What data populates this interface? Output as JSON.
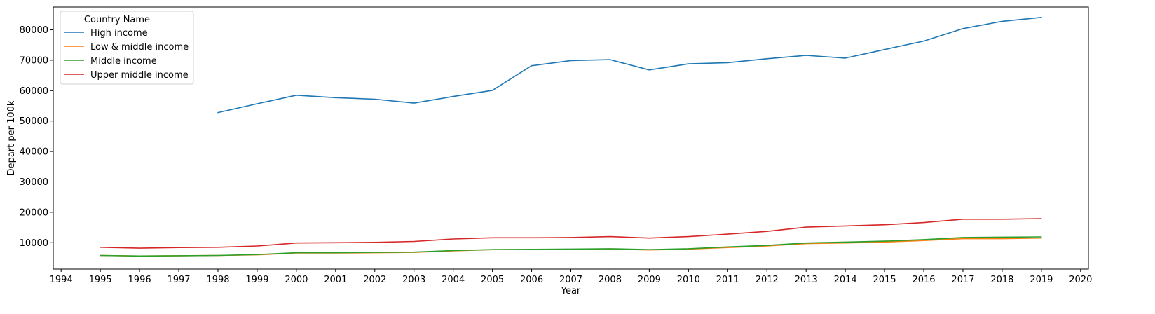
{
  "chart_data": {
    "type": "line",
    "xlabel": "Year",
    "ylabel": "Depart per 100k",
    "xlim": [
      1993.8,
      2020.2
    ],
    "ylim": [
      1300,
      87500
    ],
    "xticks": [
      1994,
      1995,
      1996,
      1997,
      1998,
      1999,
      2000,
      2001,
      2002,
      2003,
      2004,
      2005,
      2006,
      2007,
      2008,
      2009,
      2010,
      2011,
      2012,
      2013,
      2014,
      2015,
      2016,
      2017,
      2018,
      2019,
      2020
    ],
    "yticks": [
      10000,
      20000,
      30000,
      40000,
      50000,
      60000,
      70000,
      80000
    ],
    "grid": false,
    "legend": {
      "title": "Country Name",
      "placement": "top-left"
    },
    "series": [
      {
        "name": "High income",
        "color": "#1f77b4",
        "x": [
          1998,
          1999,
          2000,
          2001,
          2002,
          2003,
          2004,
          2005,
          2006,
          2007,
          2008,
          2009,
          2010,
          2011,
          2012,
          2013,
          2014,
          2015,
          2016,
          2017,
          2018,
          2019
        ],
        "y": [
          52800,
          55700,
          58500,
          57700,
          57200,
          55900,
          58100,
          60100,
          68200,
          69900,
          70200,
          66800,
          68800,
          69200,
          70500,
          71600,
          70700,
          73500,
          76300,
          80400,
          82800,
          84100
        ]
      },
      {
        "name": "Low & middle income",
        "color": "#ff7f0e",
        "x": [
          1995,
          1996,
          1997,
          1998,
          1999,
          2000,
          2001,
          2002,
          2003,
          2004,
          2005,
          2006,
          2007,
          2008,
          2009,
          2010,
          2011,
          2012,
          2013,
          2014,
          2015,
          2016,
          2017,
          2018,
          2019
        ],
        "y": [
          5800,
          5600,
          5700,
          5800,
          6000,
          6600,
          6600,
          6700,
          6800,
          7300,
          7700,
          7700,
          7800,
          7900,
          7600,
          7900,
          8400,
          8900,
          9700,
          9900,
          10200,
          10700,
          11300,
          11300,
          11500
        ]
      },
      {
        "name": "Middle income",
        "color": "#2ca02c",
        "x": [
          1995,
          1996,
          1997,
          1998,
          1999,
          2000,
          2001,
          2002,
          2003,
          2004,
          2005,
          2006,
          2007,
          2008,
          2009,
          2010,
          2011,
          2012,
          2013,
          2014,
          2015,
          2016,
          2017,
          2018,
          2019
        ],
        "y": [
          5800,
          5600,
          5700,
          5800,
          6100,
          6700,
          6700,
          6800,
          6900,
          7400,
          7700,
          7800,
          7900,
          8000,
          7700,
          8000,
          8600,
          9100,
          9900,
          10200,
          10500,
          11000,
          11700,
          11800,
          11900
        ]
      },
      {
        "name": "Upper middle income",
        "color": "#d62728",
        "x": [
          1995,
          1996,
          1997,
          1998,
          1999,
          2000,
          2001,
          2002,
          2003,
          2004,
          2005,
          2006,
          2007,
          2008,
          2009,
          2010,
          2011,
          2012,
          2013,
          2014,
          2015,
          2016,
          2017,
          2018,
          2019
        ],
        "y": [
          8500,
          8200,
          8400,
          8500,
          8900,
          9900,
          10000,
          10100,
          10400,
          11200,
          11600,
          11600,
          11700,
          12000,
          11500,
          12000,
          12800,
          13700,
          15100,
          15500,
          15900,
          16600,
          17700,
          17700,
          17900
        ]
      }
    ]
  }
}
